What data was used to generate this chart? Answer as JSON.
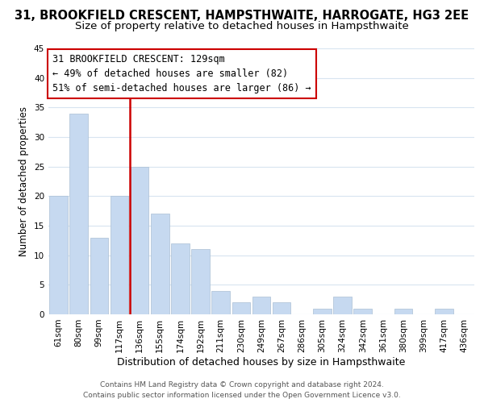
{
  "title": "31, BROOKFIELD CRESCENT, HAMPSTHWAITE, HARROGATE, HG3 2EE",
  "subtitle": "Size of property relative to detached houses in Hampsthwaite",
  "xlabel": "Distribution of detached houses by size in Hampsthwaite",
  "ylabel": "Number of detached properties",
  "bin_labels": [
    "61sqm",
    "80sqm",
    "99sqm",
    "117sqm",
    "136sqm",
    "155sqm",
    "174sqm",
    "192sqm",
    "211sqm",
    "230sqm",
    "249sqm",
    "267sqm",
    "286sqm",
    "305sqm",
    "324sqm",
    "342sqm",
    "361sqm",
    "380sqm",
    "399sqm",
    "417sqm",
    "436sqm"
  ],
  "bar_values": [
    20,
    34,
    13,
    20,
    25,
    17,
    12,
    11,
    4,
    2,
    3,
    2,
    0,
    1,
    3,
    1,
    0,
    1,
    0,
    1,
    0
  ],
  "bar_color": "#c6d9f0",
  "bar_edge_color": "#aabfd4",
  "vline_x_index": 4,
  "ylim": [
    0,
    45
  ],
  "yticks": [
    0,
    5,
    10,
    15,
    20,
    25,
    30,
    35,
    40,
    45
  ],
  "annotation_title": "31 BROOKFIELD CRESCENT: 129sqm",
  "annotation_line1": "← 49% of detached houses are smaller (82)",
  "annotation_line2": "51% of semi-detached houses are larger (86) →",
  "annotation_box_color": "#ffffff",
  "annotation_box_edge_color": "#cc0000",
  "vline_color": "#cc0000",
  "footer1": "Contains HM Land Registry data © Crown copyright and database right 2024.",
  "footer2": "Contains public sector information licensed under the Open Government Licence v3.0.",
  "background_color": "#ffffff",
  "grid_color": "#d8e4f0",
  "title_fontsize": 10.5,
  "subtitle_fontsize": 9.5,
  "xlabel_fontsize": 9,
  "ylabel_fontsize": 8.5,
  "tick_fontsize": 7.5,
  "annotation_fontsize": 8.5,
  "footer_fontsize": 6.5
}
